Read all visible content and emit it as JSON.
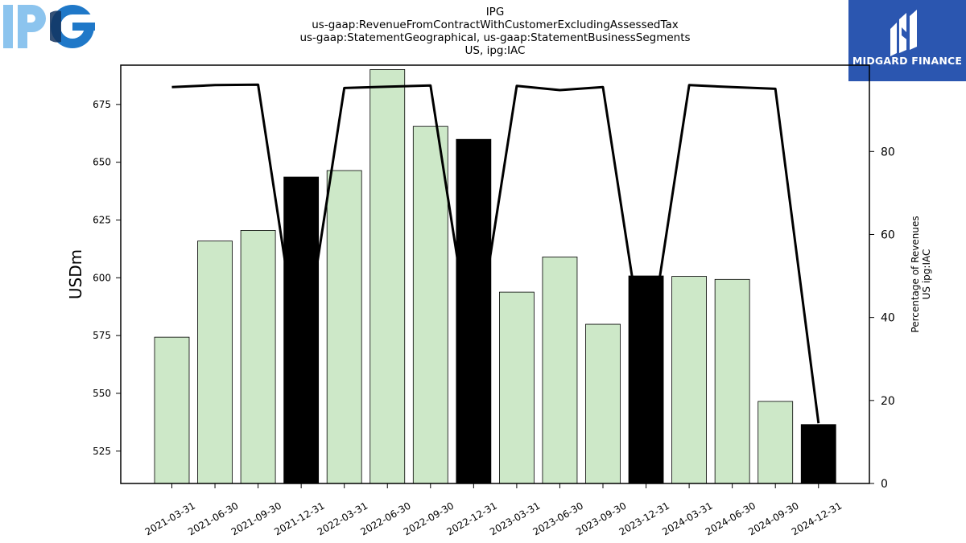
{
  "header": {
    "logo_text": "IPG",
    "brand_name": "MIDGARD FINANCE",
    "title_lines": [
      "IPG",
      "us-gaap:RevenueFromContractWithCustomerExcludingAssessedTax",
      "us-gaap:StatementGeographical, us-gaap:StatementBusinessSegments",
      "US, ipg:IAC"
    ]
  },
  "colors": {
    "bar_quarter": "#cde8c8",
    "bar_year_end": "#000000",
    "line": "#000000",
    "logo_light": "#8cc4ee",
    "logo_dark": "#1f78c8",
    "badge": "#2b56b0"
  },
  "chart_data": {
    "type": "bar",
    "categories": [
      "2021-03-31",
      "2021-06-30",
      "2021-09-30",
      "2021-12-31",
      "2022-03-31",
      "2022-06-30",
      "2022-09-30",
      "2022-12-31",
      "2023-03-31",
      "2023-06-30",
      "2023-09-30",
      "2023-12-31",
      "2024-03-31",
      "2024-06-30",
      "2024-09-30",
      "2024-12-31"
    ],
    "series": [
      {
        "axis": "left",
        "type": "bar",
        "values": [
          574.3,
          615.9,
          620.5,
          643.6,
          646.4,
          690.1,
          665.5,
          659.9,
          593.8,
          609.0,
          579.9,
          600.8,
          600.6,
          599.3,
          546.5,
          536.5
        ],
        "highlight_indices": [
          3,
          7,
          11,
          15
        ]
      },
      {
        "axis": "right",
        "type": "line",
        "values": [
          95.5,
          96.0,
          96.1,
          28.0,
          95.3,
          95.6,
          95.9,
          29.0,
          95.8,
          94.8,
          95.5,
          28.0,
          96.0,
          95.5,
          95.1,
          14.5
        ]
      }
    ],
    "ylabel": "USDm",
    "ylabel_right": [
      "Percentage of Revenues",
      "US ipg:IAC"
    ],
    "ylim": [
      511,
      692
    ],
    "y2lim": [
      0,
      100.8
    ],
    "yticks": [
      525,
      550,
      575,
      600,
      625,
      650,
      675
    ],
    "y2ticks": [
      0,
      20,
      40,
      60,
      80
    ],
    "grid": false,
    "legend": "none"
  }
}
